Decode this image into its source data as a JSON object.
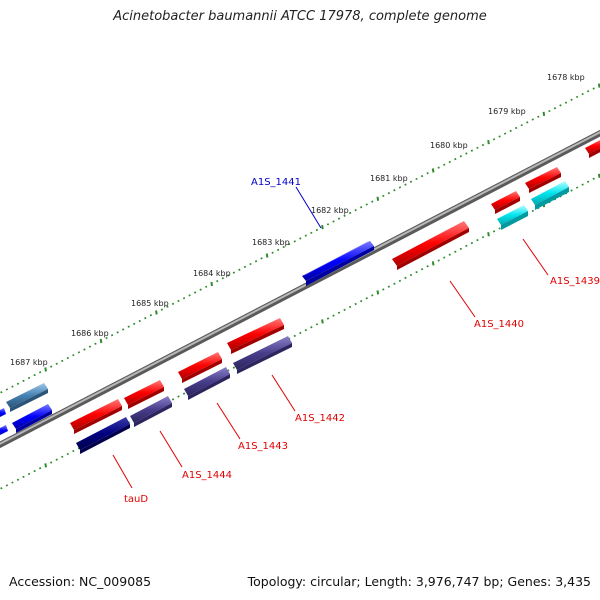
{
  "header": {
    "title": "Acinetobacter baumannii ATCC 17978, complete genome"
  },
  "footer": {
    "accession": "Accession: NC_009085",
    "summary": "Topology: circular; Length: 3,976,747 bp; Genes: 3,435"
  },
  "scale": {
    "kbp_labels": [
      "1678 kbp",
      "1679 kbp",
      "1680 kbp",
      "1681 kbp",
      "1682 kbp",
      "1683 kbp",
      "1684 kbp",
      "1685 kbp",
      "1686 kbp",
      "1687 kbp"
    ]
  },
  "genes": {
    "labels": [
      "A1S_1441",
      "A1S_1439",
      "A1S_1440",
      "A1S_1442",
      "A1S_1443",
      "A1S_1444",
      "tauD"
    ]
  },
  "colors": {
    "forward_strand": "#ff0000",
    "reverse_strand": "#0000ff",
    "backbone": "#808080",
    "tick": "#2e8b2e",
    "navy": "#000080",
    "slate": "#483d8b",
    "cyan": "#00e5ee",
    "steel": "#4682b4"
  }
}
